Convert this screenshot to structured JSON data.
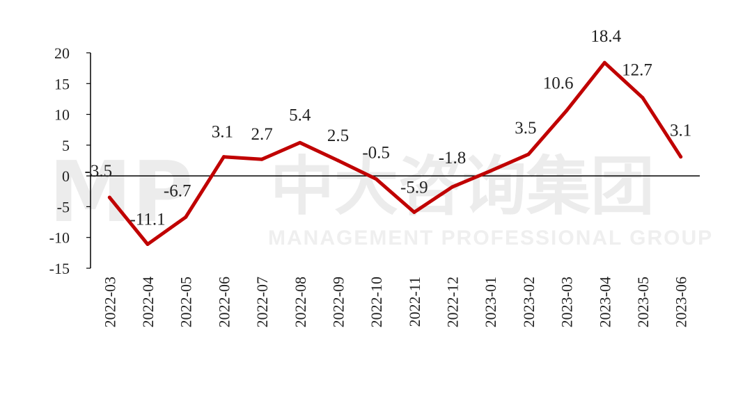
{
  "watermark": {
    "logo_text": "MP",
    "chinese_text": "中大咨询集团",
    "english_text": "MANAGEMENT PROFESSIONAL GROUP"
  },
  "colors": {
    "series": "#c00000",
    "axis": "#000000",
    "text": "#222222"
  },
  "chart_data": {
    "type": "line",
    "title": "",
    "xlabel": "",
    "ylabel": "",
    "ylim": [
      -15,
      20
    ],
    "yticks": [
      20,
      15,
      10,
      5,
      0,
      -5,
      -10,
      -15
    ],
    "grid": false,
    "legend": "none",
    "categories": [
      "2022-03",
      "2022-04",
      "2022-05",
      "2022-06",
      "2022-07",
      "2022-08",
      "2022-09",
      "2022-10",
      "2022-11",
      "2022-12",
      "2023-01",
      "2023-02",
      "2023-03",
      "2023-04",
      "2023-05",
      "2023-06"
    ],
    "series": [
      {
        "values": [
          -3.5,
          -11.1,
          -6.7,
          3.1,
          2.7,
          5.4,
          2.5,
          -0.5,
          -5.9,
          -1.8,
          0.8,
          3.5,
          10.6,
          18.4,
          12.7,
          3.1
        ],
        "labels": [
          "-3.5",
          "-11.1",
          "-6.7",
          "3.1",
          "2.7",
          "5.4",
          "2.5",
          "-0.5",
          "-5.9",
          "-1.8",
          "",
          "3.5",
          "10.6",
          "18.4",
          "12.7",
          "3.1"
        ]
      }
    ]
  }
}
